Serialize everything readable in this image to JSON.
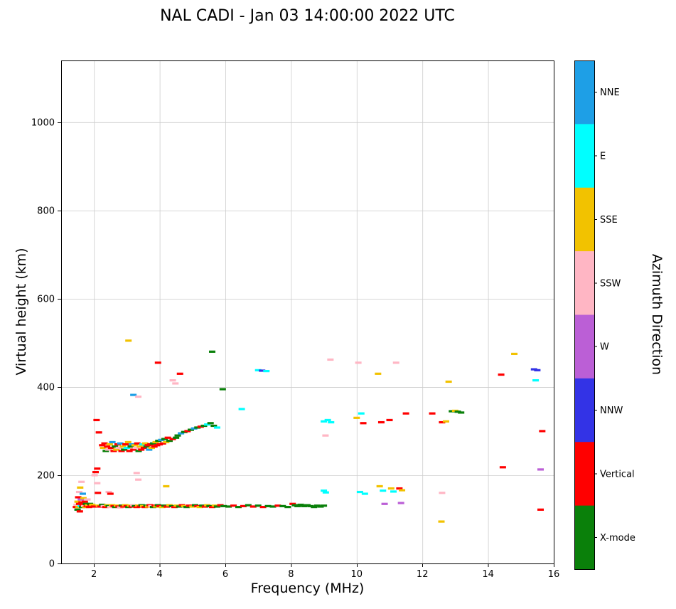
{
  "chart_data": {
    "type": "scatter",
    "title": "NAL CADI - Jan 03 14:00:00 2022 UTC",
    "xlabel": "Frequency (MHz)",
    "ylabel": "Virtual height (km)",
    "colorbar_label": "Azimuth Direction",
    "xlim": [
      1,
      16
    ],
    "ylim": [
      0,
      1140
    ],
    "xticks": [
      2,
      4,
      6,
      8,
      10,
      12,
      14,
      16
    ],
    "yticks": [
      0,
      200,
      400,
      600,
      800,
      1000
    ],
    "grid": true,
    "legend_position": "right-colorbar",
    "legend": [
      {
        "key": "NNE",
        "label": "NNE",
        "color": "#1E9FE6"
      },
      {
        "key": "E",
        "label": "E",
        "color": "#00FFFF"
      },
      {
        "key": "SSE",
        "label": "SSE",
        "color": "#F2C200"
      },
      {
        "key": "SSW",
        "label": "SSW",
        "color": "#FFB6C4"
      },
      {
        "key": "W",
        "label": "W",
        "color": "#BB5FD6"
      },
      {
        "key": "NNW",
        "label": "NNW",
        "color": "#3333E6"
      },
      {
        "key": "V",
        "label": "Vertical",
        "color": "#FF0000"
      },
      {
        "key": "X",
        "label": "X-mode",
        "color": "#0A800A"
      }
    ],
    "points": [
      [
        1.45,
        128,
        "V"
      ],
      [
        1.47,
        133,
        "SSW"
      ],
      [
        1.5,
        122,
        "X"
      ],
      [
        1.5,
        140,
        "SSE"
      ],
      [
        1.52,
        150,
        "V"
      ],
      [
        1.53,
        128,
        "SSE"
      ],
      [
        1.55,
        135,
        "V"
      ],
      [
        1.55,
        162,
        "SSW"
      ],
      [
        1.57,
        118,
        "V"
      ],
      [
        1.58,
        172,
        "SSE"
      ],
      [
        1.6,
        145,
        "W"
      ],
      [
        1.6,
        130,
        "E"
      ],
      [
        1.62,
        138,
        "V"
      ],
      [
        1.62,
        185,
        "SSW"
      ],
      [
        1.64,
        128,
        "X"
      ],
      [
        1.65,
        133,
        "V"
      ],
      [
        1.66,
        158,
        "NNE"
      ],
      [
        1.68,
        148,
        "SSE"
      ],
      [
        1.7,
        130,
        "SSW"
      ],
      [
        1.72,
        140,
        "V"
      ],
      [
        1.74,
        128,
        "SSE"
      ],
      [
        1.76,
        135,
        "X"
      ],
      [
        1.78,
        130,
        "V"
      ],
      [
        1.8,
        145,
        "SSW"
      ],
      [
        1.82,
        132,
        "SSE"
      ],
      [
        1.85,
        128,
        "V"
      ],
      [
        1.88,
        135,
        "X"
      ],
      [
        1.9,
        130,
        "V"
      ],
      [
        1.95,
        133,
        "SSE"
      ],
      [
        2.0,
        129,
        "V"
      ],
      [
        2.02,
        200,
        "SSW"
      ],
      [
        2.05,
        207,
        "V"
      ],
      [
        2.08,
        325,
        "V"
      ],
      [
        2.1,
        215,
        "V"
      ],
      [
        2.1,
        182,
        "SSW"
      ],
      [
        2.12,
        160,
        "V"
      ],
      [
        2.15,
        297,
        "V"
      ],
      [
        2.15,
        131,
        "SSE"
      ],
      [
        2.2,
        129,
        "V"
      ],
      [
        2.25,
        133,
        "X"
      ],
      [
        2.3,
        130,
        "SSW"
      ],
      [
        2.35,
        128,
        "V"
      ],
      [
        2.4,
        132,
        "SSE"
      ],
      [
        2.45,
        162,
        "SSW"
      ],
      [
        2.45,
        130,
        "X"
      ],
      [
        2.5,
        158,
        "V"
      ],
      [
        2.5,
        128,
        "SSW"
      ],
      [
        2.55,
        132,
        "SSE"
      ],
      [
        2.6,
        130,
        "V"
      ],
      [
        2.65,
        128,
        "X"
      ],
      [
        2.7,
        131,
        "SSE"
      ],
      [
        2.75,
        129,
        "V"
      ],
      [
        2.8,
        127,
        "SSW"
      ],
      [
        2.85,
        131,
        "X"
      ],
      [
        2.9,
        129,
        "V"
      ],
      [
        2.95,
        132,
        "SSE"
      ],
      [
        3.0,
        130,
        "V"
      ],
      [
        3.05,
        128,
        "X"
      ],
      [
        3.1,
        131,
        "SSE"
      ],
      [
        3.15,
        129,
        "V"
      ],
      [
        3.2,
        132,
        "SSW"
      ],
      [
        3.25,
        130,
        "X"
      ],
      [
        3.3,
        205,
        "SSW"
      ],
      [
        3.3,
        128,
        "V"
      ],
      [
        3.35,
        190,
        "SSW"
      ],
      [
        3.35,
        131,
        "SSE"
      ],
      [
        3.4,
        129,
        "V"
      ],
      [
        3.45,
        132,
        "X"
      ],
      [
        3.5,
        130,
        "SSE"
      ],
      [
        3.55,
        128,
        "V"
      ],
      [
        3.6,
        131,
        "X"
      ],
      [
        3.65,
        129,
        "SSE"
      ],
      [
        3.7,
        132,
        "V"
      ],
      [
        3.75,
        130,
        "SSW"
      ],
      [
        3.8,
        128,
        "X"
      ],
      [
        3.85,
        131,
        "V"
      ],
      [
        3.9,
        129,
        "SSE"
      ],
      [
        3.95,
        132,
        "X"
      ],
      [
        4.0,
        130,
        "V"
      ],
      [
        4.08,
        128,
        "SSE"
      ],
      [
        4.15,
        131,
        "X"
      ],
      [
        4.2,
        175,
        "SSE"
      ],
      [
        4.22,
        129,
        "V"
      ],
      [
        4.3,
        132,
        "SSE"
      ],
      [
        4.38,
        130,
        "X"
      ],
      [
        4.45,
        128,
        "V"
      ],
      [
        4.52,
        131,
        "SSE"
      ],
      [
        4.6,
        129,
        "X"
      ],
      [
        4.68,
        132,
        "V"
      ],
      [
        4.75,
        130,
        "SSE"
      ],
      [
        4.82,
        128,
        "X"
      ],
      [
        4.9,
        131,
        "V"
      ],
      [
        5.0,
        129,
        "SSE"
      ],
      [
        5.08,
        132,
        "X"
      ],
      [
        5.15,
        130,
        "V"
      ],
      [
        5.22,
        128,
        "SSE"
      ],
      [
        5.3,
        131,
        "X"
      ],
      [
        5.38,
        129,
        "V"
      ],
      [
        5.45,
        132,
        "SSE"
      ],
      [
        5.52,
        130,
        "X"
      ],
      [
        5.6,
        128,
        "V"
      ],
      [
        5.68,
        131,
        "SSE"
      ],
      [
        5.75,
        129,
        "X"
      ],
      [
        5.85,
        132,
        "V"
      ],
      [
        5.95,
        130,
        "X"
      ],
      [
        6.1,
        129,
        "X"
      ],
      [
        6.25,
        131,
        "V"
      ],
      [
        6.4,
        128,
        "X"
      ],
      [
        6.55,
        130,
        "V"
      ],
      [
        6.7,
        132,
        "X"
      ],
      [
        6.85,
        129,
        "V"
      ],
      [
        7.0,
        131,
        "X"
      ],
      [
        7.15,
        128,
        "V"
      ],
      [
        7.3,
        130,
        "X"
      ],
      [
        7.45,
        129,
        "X"
      ],
      [
        7.6,
        131,
        "V"
      ],
      [
        7.75,
        130,
        "X"
      ],
      [
        7.9,
        128,
        "X"
      ],
      [
        8.05,
        135,
        "V"
      ],
      [
        8.12,
        132,
        "X"
      ],
      [
        8.2,
        130,
        "X"
      ],
      [
        8.3,
        133,
        "X"
      ],
      [
        8.4,
        130,
        "X"
      ],
      [
        8.5,
        132,
        "X"
      ],
      [
        8.6,
        130,
        "X"
      ],
      [
        8.7,
        128,
        "X"
      ],
      [
        8.8,
        131,
        "X"
      ],
      [
        8.9,
        129,
        "X"
      ],
      [
        9.0,
        131,
        "X"
      ],
      [
        2.25,
        268,
        "V"
      ],
      [
        2.28,
        262,
        "SSE"
      ],
      [
        2.32,
        272,
        "V"
      ],
      [
        2.36,
        255,
        "X"
      ],
      [
        2.4,
        265,
        "V"
      ],
      [
        2.44,
        258,
        "SSW"
      ],
      [
        2.48,
        270,
        "SSE"
      ],
      [
        2.52,
        262,
        "V"
      ],
      [
        2.56,
        275,
        "NNE"
      ],
      [
        2.6,
        255,
        "V"
      ],
      [
        2.64,
        265,
        "X"
      ],
      [
        2.68,
        258,
        "SSE"
      ],
      [
        2.72,
        270,
        "V"
      ],
      [
        2.76,
        262,
        "SSW"
      ],
      [
        2.8,
        272,
        "NNE"
      ],
      [
        2.84,
        255,
        "V"
      ],
      [
        2.88,
        265,
        "SSE"
      ],
      [
        2.92,
        258,
        "X"
      ],
      [
        2.96,
        270,
        "V"
      ],
      [
        3.0,
        262,
        "E"
      ],
      [
        3.04,
        275,
        "SSE"
      ],
      [
        3.08,
        255,
        "V"
      ],
      [
        3.12,
        265,
        "X"
      ],
      [
        3.16,
        270,
        "NNE"
      ],
      [
        3.2,
        258,
        "V"
      ],
      [
        3.24,
        268,
        "SSE"
      ],
      [
        3.28,
        262,
        "SSW"
      ],
      [
        3.32,
        272,
        "V"
      ],
      [
        3.36,
        255,
        "X"
      ],
      [
        3.4,
        265,
        "SSE"
      ],
      [
        3.44,
        258,
        "V"
      ],
      [
        3.48,
        270,
        "E"
      ],
      [
        3.52,
        262,
        "V"
      ],
      [
        3.56,
        272,
        "SSE"
      ],
      [
        3.6,
        265,
        "X"
      ],
      [
        3.64,
        268,
        "V"
      ],
      [
        3.68,
        258,
        "NNE"
      ],
      [
        3.72,
        270,
        "V"
      ],
      [
        3.76,
        262,
        "SSE"
      ],
      [
        3.8,
        272,
        "X"
      ],
      [
        3.84,
        265,
        "V"
      ],
      [
        3.88,
        275,
        "SSE"
      ],
      [
        3.92,
        268,
        "V"
      ],
      [
        3.96,
        278,
        "X"
      ],
      [
        4.0,
        270,
        "V"
      ],
      [
        4.05,
        280,
        "NNE"
      ],
      [
        4.1,
        272,
        "V"
      ],
      [
        4.15,
        282,
        "X"
      ],
      [
        4.2,
        275,
        "SSE"
      ],
      [
        4.25,
        285,
        "V"
      ],
      [
        4.3,
        278,
        "X"
      ],
      [
        4.4,
        282,
        "V"
      ],
      [
        4.5,
        285,
        "X"
      ],
      [
        4.55,
        290,
        "X"
      ],
      [
        4.65,
        295,
        "NNE"
      ],
      [
        4.75,
        298,
        "X"
      ],
      [
        4.85,
        300,
        "V"
      ],
      [
        4.95,
        303,
        "X"
      ],
      [
        5.05,
        306,
        "NNE"
      ],
      [
        5.15,
        308,
        "X"
      ],
      [
        5.25,
        310,
        "V"
      ],
      [
        5.35,
        312,
        "X"
      ],
      [
        5.45,
        315,
        "E"
      ],
      [
        5.55,
        318,
        "X"
      ],
      [
        5.65,
        312,
        "X"
      ],
      [
        5.75,
        308,
        "E"
      ],
      [
        3.05,
        505,
        "SSE"
      ],
      [
        3.2,
        382,
        "NNE"
      ],
      [
        3.35,
        378,
        "SSW"
      ],
      [
        3.95,
        455,
        "V"
      ],
      [
        4.4,
        415,
        "SSW"
      ],
      [
        4.48,
        408,
        "SSW"
      ],
      [
        4.62,
        430,
        "V"
      ],
      [
        5.6,
        480,
        "X"
      ],
      [
        5.92,
        395,
        "X"
      ],
      [
        6.5,
        350,
        "E"
      ],
      [
        7.0,
        438,
        "E"
      ],
      [
        7.12,
        437,
        "NNW"
      ],
      [
        7.25,
        436,
        "E"
      ],
      [
        9.0,
        322,
        "E"
      ],
      [
        9.12,
        325,
        "E"
      ],
      [
        9.22,
        320,
        "E"
      ],
      [
        9.05,
        290,
        "SSW"
      ],
      [
        9.2,
        462,
        "SSW"
      ],
      [
        9.0,
        165,
        "E"
      ],
      [
        9.06,
        161,
        "E"
      ],
      [
        10.0,
        330,
        "SSE"
      ],
      [
        10.14,
        340,
        "E"
      ],
      [
        10.2,
        318,
        "V"
      ],
      [
        10.05,
        455,
        "SSW"
      ],
      [
        10.1,
        162,
        "E"
      ],
      [
        10.25,
        158,
        "E"
      ],
      [
        10.65,
        430,
        "SSE"
      ],
      [
        10.7,
        175,
        "SSE"
      ],
      [
        10.8,
        165,
        "E"
      ],
      [
        10.85,
        135,
        "W"
      ],
      [
        10.75,
        320,
        "V"
      ],
      [
        11.0,
        325,
        "V"
      ],
      [
        11.05,
        170,
        "SSE"
      ],
      [
        11.12,
        163,
        "E"
      ],
      [
        11.2,
        455,
        "SSW"
      ],
      [
        11.3,
        170,
        "V"
      ],
      [
        11.38,
        166,
        "SSE"
      ],
      [
        11.35,
        137,
        "W"
      ],
      [
        11.5,
        340,
        "V"
      ],
      [
        12.3,
        340,
        "V"
      ],
      [
        12.6,
        320,
        "V"
      ],
      [
        12.72,
        322,
        "SSE"
      ],
      [
        12.6,
        160,
        "SSW"
      ],
      [
        12.58,
        95,
        "SSE"
      ],
      [
        12.8,
        412,
        "SSE"
      ],
      [
        12.9,
        345,
        "X"
      ],
      [
        13.0,
        346,
        "SSE"
      ],
      [
        13.08,
        344,
        "X"
      ],
      [
        13.18,
        342,
        "X"
      ],
      [
        14.4,
        428,
        "V"
      ],
      [
        14.45,
        218,
        "V"
      ],
      [
        14.8,
        475,
        "SSE"
      ],
      [
        15.4,
        440,
        "NNW"
      ],
      [
        15.5,
        438,
        "NNW"
      ],
      [
        15.45,
        415,
        "E"
      ],
      [
        15.65,
        300,
        "V"
      ],
      [
        15.6,
        213,
        "W"
      ],
      [
        15.6,
        122,
        "V"
      ]
    ]
  }
}
